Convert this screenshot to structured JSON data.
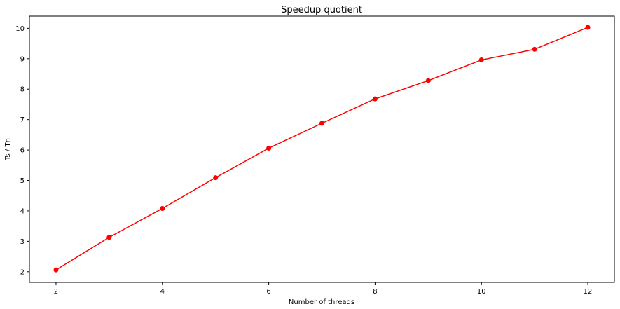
{
  "chart_data": {
    "type": "line",
    "title": "Speedup quotient",
    "xlabel": "Number of threads",
    "ylabel": "Ts / Tn",
    "xlim": [
      1.5,
      12.5
    ],
    "ylim": [
      1.65,
      10.4
    ],
    "xticks": [
      2,
      4,
      6,
      8,
      10,
      12
    ],
    "yticks": [
      2,
      3,
      4,
      5,
      6,
      7,
      8,
      9,
      10
    ],
    "grid": false,
    "series": [
      {
        "x": [
          2,
          3,
          4,
          5,
          6,
          7,
          8,
          9,
          10,
          11,
          12
        ],
        "values": [
          2.06,
          3.13,
          4.08,
          5.09,
          6.06,
          6.88,
          7.68,
          8.28,
          8.96,
          9.31,
          10.03
        ],
        "color": "#ff0000",
        "marker": "circle"
      }
    ]
  }
}
